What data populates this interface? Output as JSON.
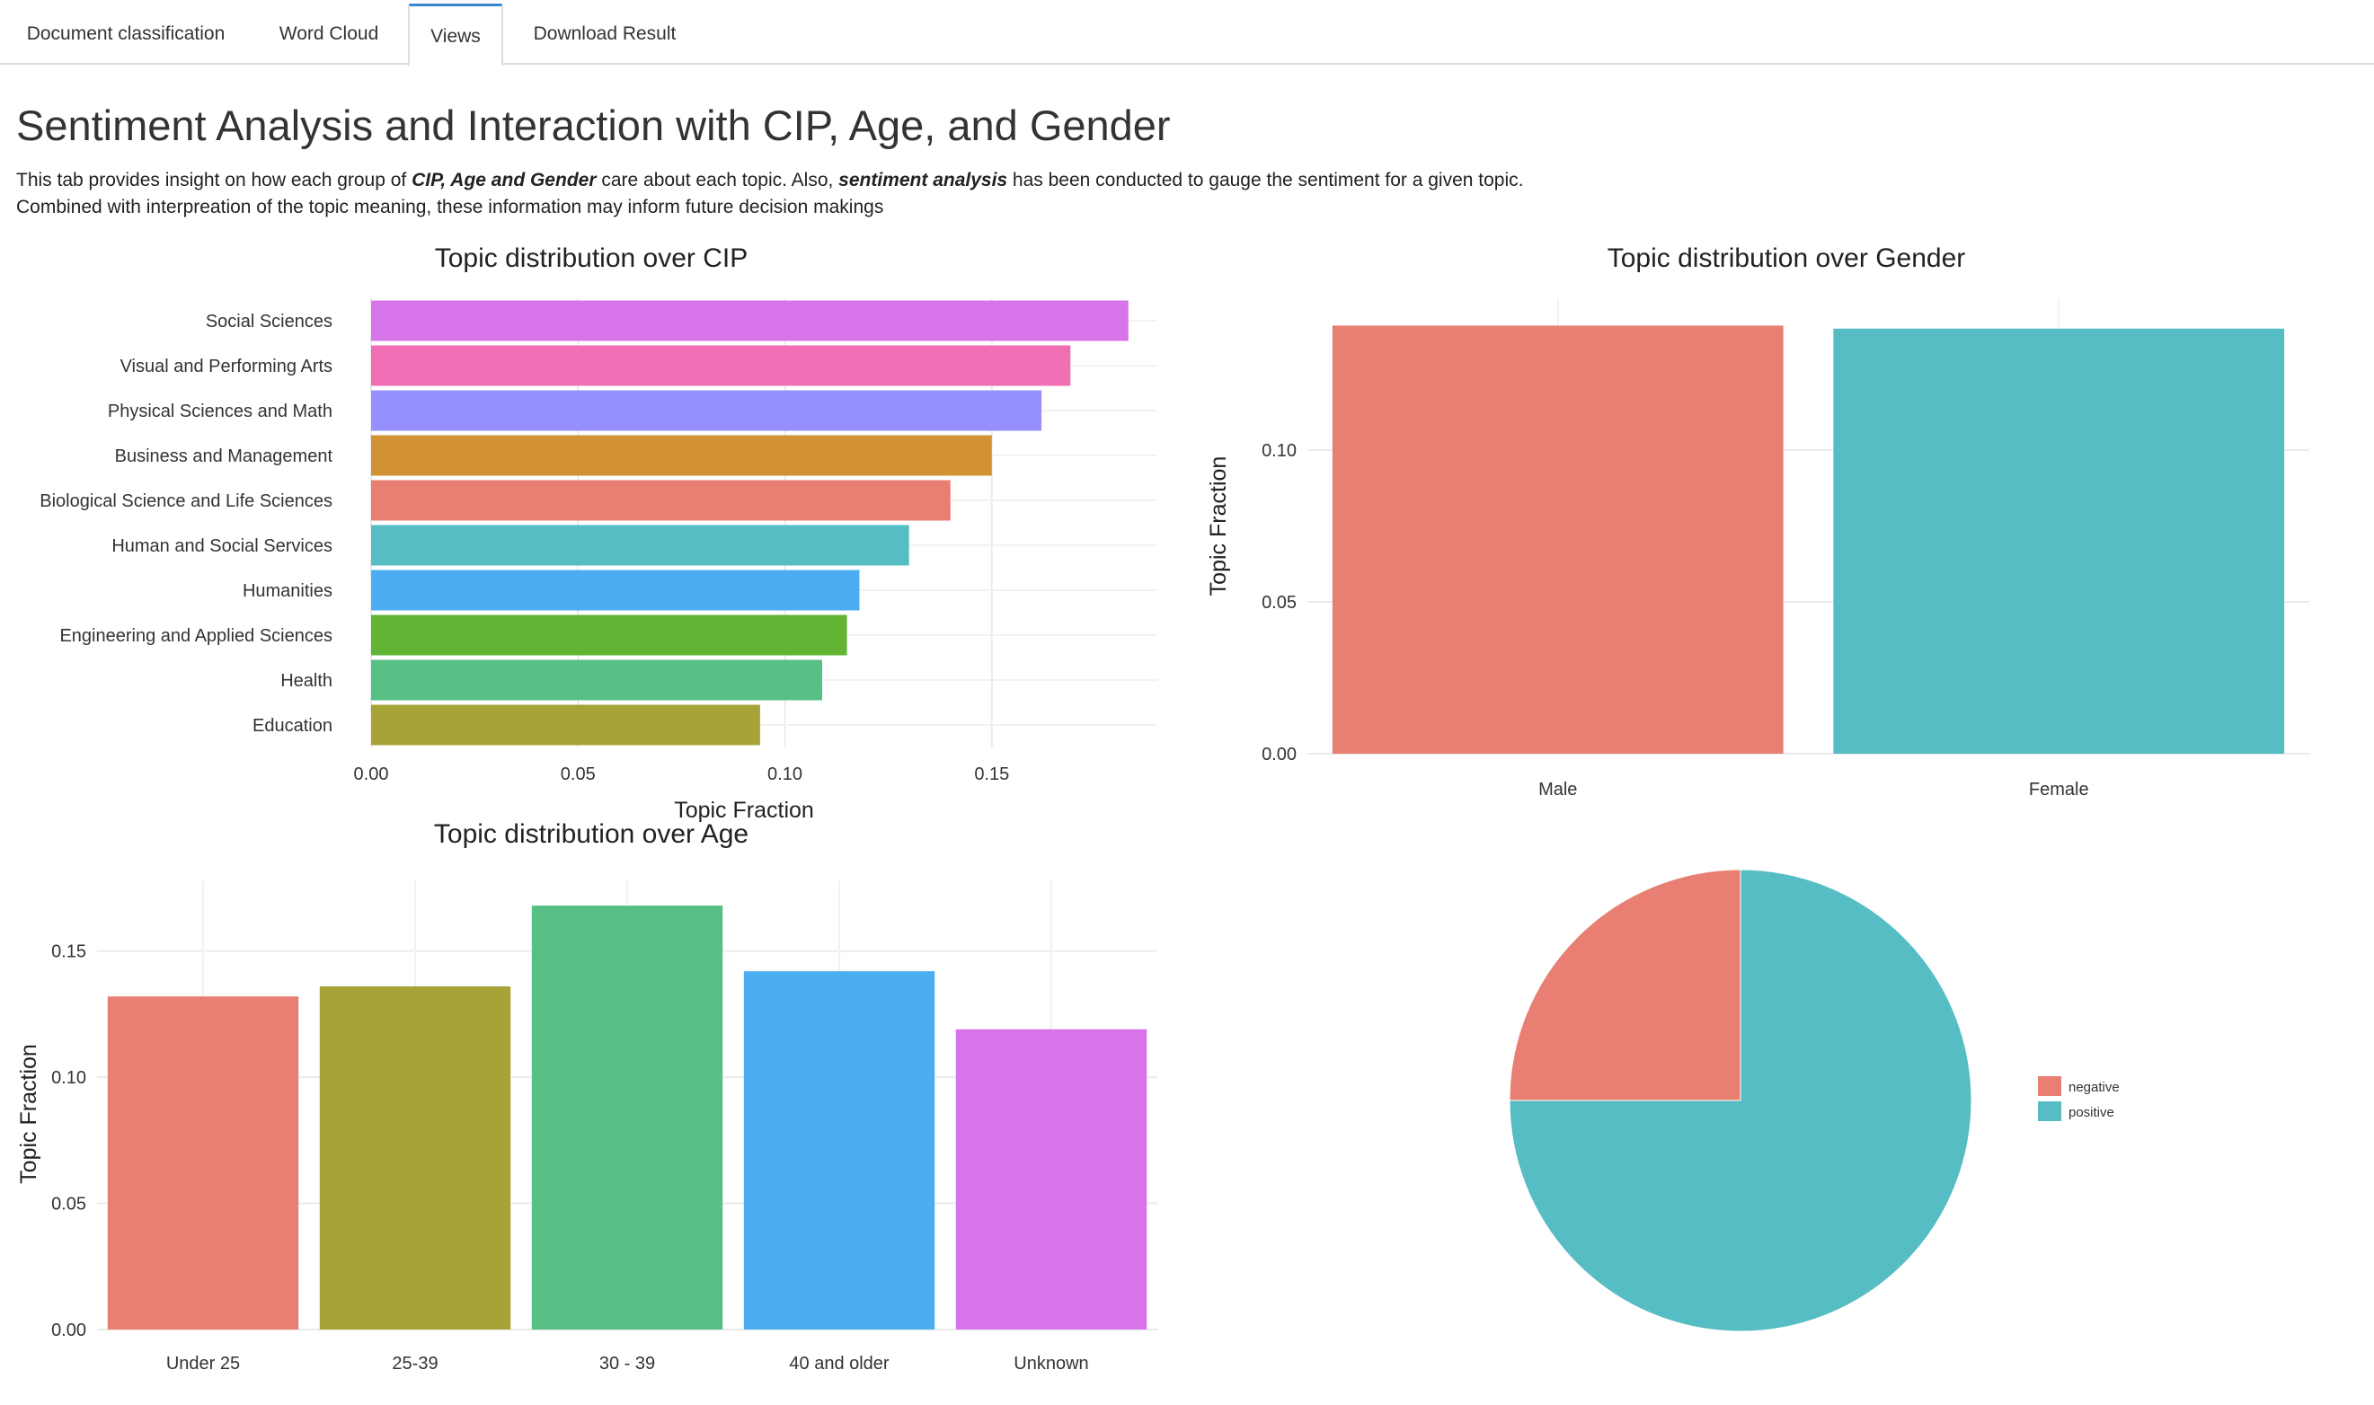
{
  "tabs": [
    {
      "label": "Document classification",
      "active": false
    },
    {
      "label": "Word Cloud",
      "active": false
    },
    {
      "label": "Views",
      "active": true
    },
    {
      "label": "Download Result",
      "active": false
    }
  ],
  "page": {
    "title": "Sentiment Analysis and Interaction with CIP, Age, and Gender",
    "intro_line1_a": "This tab provides insight on how each group of ",
    "intro_line1_b": "CIP, Age and Gender",
    "intro_line1_c": " care about each topic. Also, ",
    "intro_line1_d": "sentiment analysis",
    "intro_line1_e": " has been conducted to gauge the sentiment for a given topic.",
    "intro_line2": "Combined with interpreation of the topic meaning, these information may inform future decision makings"
  },
  "chart_data": [
    {
      "type": "bar",
      "orientation": "horizontal",
      "title": "Topic distribution over CIP",
      "xlabel": "Topic Fraction",
      "ylabel": "",
      "xlim": [
        0,
        0.19
      ],
      "xticks": [
        "0.00",
        "0.05",
        "0.10",
        "0.15"
      ],
      "xtick_values": [
        0,
        0.05,
        0.1,
        0.15
      ],
      "grid": true,
      "categories": [
        "Social Sciences",
        "Visual and Performing Arts",
        "Physical Sciences and Math",
        "Business and Management",
        "Biological Science and Life Sciences",
        "Human and Social Services",
        "Humanities",
        "Engineering and Applied Sciences",
        "Health",
        "Education"
      ],
      "values": [
        0.183,
        0.169,
        0.162,
        0.15,
        0.14,
        0.13,
        0.118,
        0.115,
        0.109,
        0.094
      ],
      "colors": [
        "#d874ea",
        "#f06eb4",
        "#9590fb",
        "#d29234",
        "#e87f72",
        "#55bdc3",
        "#4caef0",
        "#62b534",
        "#55bf84",
        "#a7a337"
      ]
    },
    {
      "type": "bar",
      "title": "Topic distribution over Gender",
      "xlabel": "",
      "ylabel": "Topic Fraction",
      "ylim": [
        0,
        0.15
      ],
      "yticks": [
        "0.00",
        "0.05",
        "0.10"
      ],
      "ytick_values": [
        0,
        0.05,
        0.1
      ],
      "grid": true,
      "categories": [
        "Male",
        "Female"
      ],
      "values": [
        0.141,
        0.14
      ],
      "colors": [
        "#e87f72",
        "#55bdc3"
      ]
    },
    {
      "type": "bar",
      "title": "Topic distribution over Age",
      "xlabel": "",
      "ylabel": "Topic Fraction",
      "ylim": [
        0,
        0.178
      ],
      "yticks": [
        "0.00",
        "0.05",
        "0.10",
        "0.15"
      ],
      "ytick_values": [
        0,
        0.05,
        0.1,
        0.15
      ],
      "grid": true,
      "categories": [
        "Under 25",
        "25-39",
        "30 - 39",
        "40 and older",
        "Unknown"
      ],
      "values": [
        0.132,
        0.136,
        0.168,
        0.142,
        0.119
      ],
      "colors": [
        "#e87f72",
        "#a7a337",
        "#55bf84",
        "#4caef0",
        "#d874ea"
      ]
    },
    {
      "type": "pie",
      "title": "",
      "legend_position": "right",
      "labels": [
        "negative",
        "positive"
      ],
      "values": [
        0.25,
        0.75
      ],
      "colors": [
        "#e87f72",
        "#55bdc3"
      ]
    }
  ]
}
